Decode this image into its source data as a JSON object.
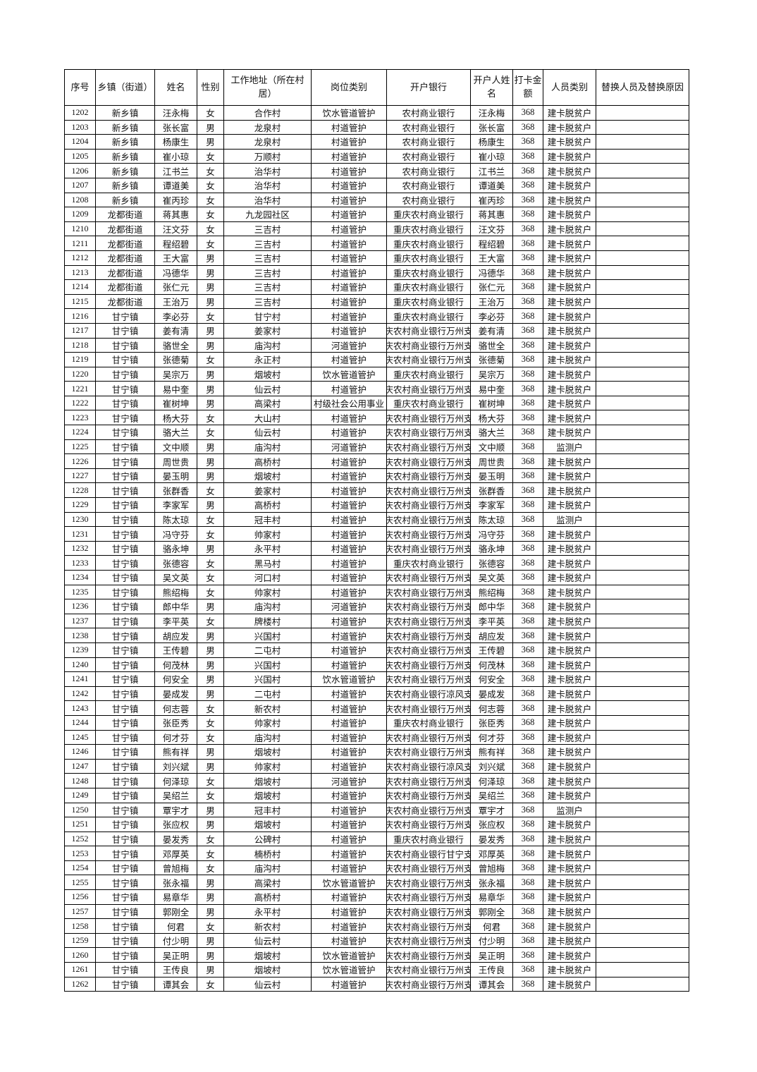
{
  "table": {
    "headers": [
      "序号",
      "乡镇（街道）",
      "姓名",
      "性别",
      "工作地址（所在村居）",
      "岗位类别",
      "开户银行",
      "开户人姓名",
      "打卡金额",
      "人员类别",
      "替换人员及替换原因"
    ],
    "rows": [
      [
        "1202",
        "新乡镇",
        "汪永梅",
        "女",
        "合作村",
        "饮水管道管护",
        "农村商业银行",
        "汪永梅",
        "368",
        "建卡脱贫户",
        ""
      ],
      [
        "1203",
        "新乡镇",
        "张长富",
        "男",
        "龙泉村",
        "村道管护",
        "农村商业银行",
        "张长富",
        "368",
        "建卡脱贫户",
        ""
      ],
      [
        "1204",
        "新乡镇",
        "杨康生",
        "男",
        "龙泉村",
        "村道管护",
        "农村商业银行",
        "杨康生",
        "368",
        "建卡脱贫户",
        ""
      ],
      [
        "1205",
        "新乡镇",
        "崔小琼",
        "女",
        "万顺村",
        "村道管护",
        "农村商业银行",
        "崔小琼",
        "368",
        "建卡脱贫户",
        ""
      ],
      [
        "1206",
        "新乡镇",
        "江书兰",
        "女",
        "治华村",
        "村道管护",
        "农村商业银行",
        "江书兰",
        "368",
        "建卡脱贫户",
        ""
      ],
      [
        "1207",
        "新乡镇",
        "谭道美",
        "女",
        "治华村",
        "村道管护",
        "农村商业银行",
        "谭道美",
        "368",
        "建卡脱贫户",
        ""
      ],
      [
        "1208",
        "新乡镇",
        "崔丙珍",
        "女",
        "治华村",
        "村道管护",
        "农村商业银行",
        "崔丙珍",
        "368",
        "建卡脱贫户",
        ""
      ],
      [
        "1209",
        "龙都街道",
        "蒋其惠",
        "女",
        "九龙园社区",
        "村道管护",
        "重庆农村商业银行",
        "蒋其惠",
        "368",
        "建卡脱贫户",
        ""
      ],
      [
        "1210",
        "龙都街道",
        "汪文芬",
        "女",
        "三吉村",
        "村道管护",
        "重庆农村商业银行",
        "汪文芬",
        "368",
        "建卡脱贫户",
        ""
      ],
      [
        "1211",
        "龙都街道",
        "程绍碧",
        "女",
        "三吉村",
        "村道管护",
        "重庆农村商业银行",
        "程绍碧",
        "368",
        "建卡脱贫户",
        ""
      ],
      [
        "1212",
        "龙都街道",
        "王大富",
        "男",
        "三吉村",
        "村道管护",
        "重庆农村商业银行",
        "王大富",
        "368",
        "建卡脱贫户",
        ""
      ],
      [
        "1213",
        "龙都街道",
        "冯德华",
        "男",
        "三吉村",
        "村道管护",
        "重庆农村商业银行",
        "冯德华",
        "368",
        "建卡脱贫户",
        ""
      ],
      [
        "1214",
        "龙都街道",
        "张仁元",
        "男",
        "三吉村",
        "村道管护",
        "重庆农村商业银行",
        "张仁元",
        "368",
        "建卡脱贫户",
        ""
      ],
      [
        "1215",
        "龙都街道",
        "王治万",
        "男",
        "三吉村",
        "村道管护",
        "重庆农村商业银行",
        "王治万",
        "368",
        "建卡脱贫户",
        ""
      ],
      [
        "1216",
        "甘宁镇",
        "李必芬",
        "女",
        "甘宁村",
        "村道管护",
        "重庆农村商业银行",
        "李必芬",
        "368",
        "建卡脱贫户",
        ""
      ],
      [
        "1217",
        "甘宁镇",
        "姜有清",
        "男",
        "姜家村",
        "村道管护",
        "重庆农村商业银行万州支行",
        "姜有清",
        "368",
        "建卡脱贫户",
        ""
      ],
      [
        "1218",
        "甘宁镇",
        "骆世全",
        "男",
        "庙沟村",
        "河道管护",
        "重庆农村商业银行万州支行",
        "骆世全",
        "368",
        "建卡脱贫户",
        ""
      ],
      [
        "1219",
        "甘宁镇",
        "张德菊",
        "女",
        "永正村",
        "村道管护",
        "重庆农村商业银行万州支行",
        "张德菊",
        "368",
        "建卡脱贫户",
        ""
      ],
      [
        "1220",
        "甘宁镇",
        "吴宗万",
        "男",
        "烟坡村",
        "饮水管道管护",
        "重庆农村商业银行",
        "吴宗万",
        "368",
        "建卡脱贫户",
        ""
      ],
      [
        "1221",
        "甘宁镇",
        "易中奎",
        "男",
        "仙云村",
        "村道管护",
        "重庆农村商业银行万州支行",
        "易中奎",
        "368",
        "建卡脱贫户",
        ""
      ],
      [
        "1222",
        "甘宁镇",
        "崔树坤",
        "男",
        "高梁村",
        "村级社会公用事业",
        "重庆农村商业银行",
        "崔树坤",
        "368",
        "建卡脱贫户",
        ""
      ],
      [
        "1223",
        "甘宁镇",
        "杨大芬",
        "女",
        "大山村",
        "村道管护",
        "重庆农村商业银行万州支行",
        "杨大芬",
        "368",
        "建卡脱贫户",
        ""
      ],
      [
        "1224",
        "甘宁镇",
        "骆大兰",
        "女",
        "仙云村",
        "村道管护",
        "重庆农村商业银行万州支行",
        "骆大兰",
        "368",
        "建卡脱贫户",
        ""
      ],
      [
        "1225",
        "甘宁镇",
        "文中顺",
        "男",
        "庙沟村",
        "河道管护",
        "重庆农村商业银行万州支行",
        "文中顺",
        "368",
        "监测户",
        ""
      ],
      [
        "1226",
        "甘宁镇",
        "周世贵",
        "男",
        "高桥村",
        "村道管护",
        "重庆农村商业银行万州支行",
        "周世贵",
        "368",
        "建卡脱贫户",
        ""
      ],
      [
        "1227",
        "甘宁镇",
        "晏玉明",
        "男",
        "烟坡村",
        "村道管护",
        "重庆农村商业银行万州支行",
        "晏玉明",
        "368",
        "建卡脱贫户",
        ""
      ],
      [
        "1228",
        "甘宁镇",
        "张群香",
        "女",
        "姜家村",
        "村道管护",
        "重庆农村商业银行万州支行",
        "张群香",
        "368",
        "建卡脱贫户",
        ""
      ],
      [
        "1229",
        "甘宁镇",
        "李家军",
        "男",
        "高桥村",
        "村道管护",
        "重庆农村商业银行万州支行",
        "李家军",
        "368",
        "建卡脱贫户",
        ""
      ],
      [
        "1230",
        "甘宁镇",
        "陈太琼",
        "女",
        "冠丰村",
        "村道管护",
        "重庆农村商业银行万州支行",
        "陈太琼",
        "368",
        "监测户",
        ""
      ],
      [
        "1231",
        "甘宁镇",
        "冯守芬",
        "女",
        "帅家村",
        "村道管护",
        "重庆农村商业银行万州支行",
        "冯守芬",
        "368",
        "建卡脱贫户",
        ""
      ],
      [
        "1232",
        "甘宁镇",
        "骆永坤",
        "男",
        "永平村",
        "村道管护",
        "重庆农村商业银行万州支行",
        "骆永坤",
        "368",
        "建卡脱贫户",
        ""
      ],
      [
        "1233",
        "甘宁镇",
        "张德容",
        "女",
        "黑马村",
        "村道管护",
        "重庆农村商业银行",
        "张德容",
        "368",
        "建卡脱贫户",
        ""
      ],
      [
        "1234",
        "甘宁镇",
        "吴文英",
        "女",
        "河口村",
        "村道管护",
        "重庆农村商业银行万州支行",
        "吴文英",
        "368",
        "建卡脱贫户",
        ""
      ],
      [
        "1235",
        "甘宁镇",
        "熊绍梅",
        "女",
        "帅家村",
        "村道管护",
        "重庆农村商业银行万州支行",
        "熊绍梅",
        "368",
        "建卡脱贫户",
        ""
      ],
      [
        "1236",
        "甘宁镇",
        "郎中华",
        "男",
        "庙沟村",
        "河道管护",
        "重庆农村商业银行万州支行",
        "郎中华",
        "368",
        "建卡脱贫户",
        ""
      ],
      [
        "1237",
        "甘宁镇",
        "李平英",
        "女",
        "牌楼村",
        "村道管护",
        "重庆农村商业银行万州支行",
        "李平英",
        "368",
        "建卡脱贫户",
        ""
      ],
      [
        "1238",
        "甘宁镇",
        "胡应发",
        "男",
        "兴国村",
        "村道管护",
        "重庆农村商业银行万州支行",
        "胡应发",
        "368",
        "建卡脱贫户",
        ""
      ],
      [
        "1239",
        "甘宁镇",
        "王传碧",
        "男",
        "二屯村",
        "村道管护",
        "重庆农村商业银行万州支行",
        "王传碧",
        "368",
        "建卡脱贫户",
        ""
      ],
      [
        "1240",
        "甘宁镇",
        "何茂林",
        "男",
        "兴国村",
        "村道管护",
        "重庆农村商业银行万州支行",
        "何茂林",
        "368",
        "建卡脱贫户",
        ""
      ],
      [
        "1241",
        "甘宁镇",
        "何安全",
        "男",
        "兴国村",
        "饮水管道管护",
        "重庆农村商业银行万州支行",
        "何安全",
        "368",
        "建卡脱贫户",
        ""
      ],
      [
        "1242",
        "甘宁镇",
        "晏成发",
        "男",
        "二屯村",
        "村道管护",
        "重庆农村商业银行凉风支行",
        "晏成发",
        "368",
        "建卡脱贫户",
        ""
      ],
      [
        "1243",
        "甘宁镇",
        "何志蓉",
        "女",
        "新农村",
        "村道管护",
        "重庆农村商业银行万州支行",
        "何志蓉",
        "368",
        "建卡脱贫户",
        ""
      ],
      [
        "1244",
        "甘宁镇",
        "张臣秀",
        "女",
        "帅家村",
        "村道管护",
        "重庆农村商业银行",
        "张臣秀",
        "368",
        "建卡脱贫户",
        ""
      ],
      [
        "1245",
        "甘宁镇",
        "何才芬",
        "女",
        "庙沟村",
        "村道管护",
        "重庆农村商业银行万州支行",
        "何才芬",
        "368",
        "建卡脱贫户",
        ""
      ],
      [
        "1246",
        "甘宁镇",
        "熊有祥",
        "男",
        "烟坡村",
        "村道管护",
        "重庆农村商业银行万州支行",
        "熊有祥",
        "368",
        "建卡脱贫户",
        ""
      ],
      [
        "1247",
        "甘宁镇",
        "刘兴斌",
        "男",
        "帅家村",
        "村道管护",
        "重庆农村商业银行凉风支行",
        "刘兴斌",
        "368",
        "建卡脱贫户",
        ""
      ],
      [
        "1248",
        "甘宁镇",
        "何泽琼",
        "女",
        "烟坡村",
        "河道管护",
        "重庆农村商业银行万州支行",
        "何泽琼",
        "368",
        "建卡脱贫户",
        ""
      ],
      [
        "1249",
        "甘宁镇",
        "吴绍兰",
        "女",
        "烟坡村",
        "村道管护",
        "重庆农村商业银行万州支行",
        "吴绍兰",
        "368",
        "建卡脱贫户",
        ""
      ],
      [
        "1250",
        "甘宁镇",
        "覃宇才",
        "男",
        "冠丰村",
        "村道管护",
        "重庆农村商业银行万州支行",
        "覃宇才",
        "368",
        "监测户",
        ""
      ],
      [
        "1251",
        "甘宁镇",
        "张应权",
        "男",
        "烟坡村",
        "村道管护",
        "重庆农村商业银行万州支行",
        "张应权",
        "368",
        "建卡脱贫户",
        ""
      ],
      [
        "1252",
        "甘宁镇",
        "晏发秀",
        "女",
        "公碑村",
        "村道管护",
        "重庆农村商业银行",
        "晏发秀",
        "368",
        "建卡脱贫户",
        ""
      ],
      [
        "1253",
        "甘宁镇",
        "邓厚英",
        "女",
        "楠桥村",
        "村道管护",
        "重庆农村商业银行甘宁支行",
        "邓厚英",
        "368",
        "建卡脱贫户",
        ""
      ],
      [
        "1254",
        "甘宁镇",
        "曾旭梅",
        "女",
        "庙沟村",
        "村道管护",
        "重庆农村商业银行万州支行",
        "曾旭梅",
        "368",
        "建卡脱贫户",
        ""
      ],
      [
        "1255",
        "甘宁镇",
        "张永福",
        "男",
        "高梁村",
        "饮水管道管护",
        "重庆农村商业银行万州支行",
        "张永福",
        "368",
        "建卡脱贫户",
        ""
      ],
      [
        "1256",
        "甘宁镇",
        "易章华",
        "男",
        "高桥村",
        "村道管护",
        "重庆农村商业银行万州支行",
        "易章华",
        "368",
        "建卡脱贫户",
        ""
      ],
      [
        "1257",
        "甘宁镇",
        "郭刚全",
        "男",
        "永平村",
        "村道管护",
        "重庆农村商业银行万州支行",
        "郭刚全",
        "368",
        "建卡脱贫户",
        ""
      ],
      [
        "1258",
        "甘宁镇",
        "何君",
        "女",
        "新农村",
        "村道管护",
        "重庆农村商业银行万州支行",
        "何君",
        "368",
        "建卡脱贫户",
        ""
      ],
      [
        "1259",
        "甘宁镇",
        "付少明",
        "男",
        "仙云村",
        "村道管护",
        "重庆农村商业银行万州支行",
        "付少明",
        "368",
        "建卡脱贫户",
        ""
      ],
      [
        "1260",
        "甘宁镇",
        "吴正明",
        "男",
        "烟坡村",
        "饮水管道管护",
        "重庆农村商业银行万州支行",
        "吴正明",
        "368",
        "建卡脱贫户",
        ""
      ],
      [
        "1261",
        "甘宁镇",
        "王传良",
        "男",
        "烟坡村",
        "饮水管道管护",
        "重庆农村商业银行万州支行",
        "王传良",
        "368",
        "建卡脱贫户",
        ""
      ],
      [
        "1262",
        "甘宁镇",
        "谭其会",
        "女",
        "仙云村",
        "村道管护",
        "重庆农村商业银行万州支行",
        "谭其会",
        "368",
        "建卡脱贫户",
        ""
      ]
    ]
  }
}
